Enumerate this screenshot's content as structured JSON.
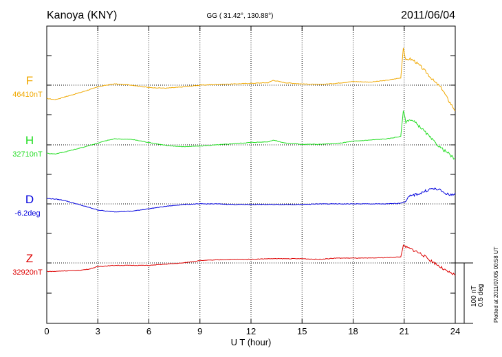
{
  "header": {
    "station": "Kanoya (KNY)",
    "coords": "GG ( 31.42°, 130.88°)",
    "date": "2011/06/04"
  },
  "scale_bar": {
    "line1": "100 nT",
    "line2": "0.5 deg"
  },
  "plotted_note": "Plotted at 2011/07/05 00:58 UT",
  "chart_data": {
    "type": "line",
    "title": "",
    "xlabel": "U T (hour)",
    "ylabel": "",
    "xlim": [
      0,
      24
    ],
    "xticks": [
      0,
      3,
      6,
      9,
      12,
      15,
      18,
      21,
      24
    ],
    "xtick_labels": [
      "0",
      "3",
      "6",
      "9",
      "12",
      "15",
      "18",
      "21",
      "24"
    ],
    "vertical_grid_hours": [
      3,
      6,
      9,
      12,
      15,
      18,
      21
    ],
    "grid": true,
    "scale_nT_per_bar": 100,
    "scale_deg_per_bar": 0.5,
    "series": [
      {
        "name": "F",
        "baseline_label": "46410nT",
        "color": "#f0a800",
        "hours": [
          0,
          0.5,
          1,
          2,
          3,
          3.5,
          4,
          5,
          6,
          7,
          8,
          9,
          10,
          11,
          12,
          13,
          13.3,
          14,
          15,
          16,
          17,
          18,
          19,
          20,
          20.8,
          20.95,
          21.1,
          21.3,
          21.6,
          22,
          22.4,
          22.8,
          23.2,
          23.6,
          24
        ],
        "values": [
          -22,
          -24,
          -20,
          -12,
          -3,
          0,
          2,
          0,
          -4,
          -5,
          -3,
          0,
          1,
          2,
          3,
          4,
          8,
          4,
          2,
          1,
          3,
          6,
          5,
          8,
          12,
          62,
          40,
          44,
          40,
          30,
          18,
          5,
          -5,
          -25,
          -42
        ]
      },
      {
        "name": "H",
        "baseline_label": "32710nT",
        "color": "#22dd22",
        "hours": [
          0,
          0.5,
          1,
          2,
          3,
          3.5,
          4,
          5,
          6,
          7,
          8,
          9,
          10,
          11,
          12,
          13,
          13.3,
          14,
          15,
          16,
          17,
          18,
          19,
          20,
          20.8,
          20.95,
          21.1,
          21.3,
          21.6,
          22,
          22.4,
          22.8,
          23.2,
          23.6,
          24
        ],
        "values": [
          -14,
          -15,
          -12,
          -5,
          3,
          7,
          10,
          9,
          4,
          -1,
          -3,
          -2,
          0,
          2,
          4,
          5,
          8,
          3,
          1,
          1,
          2,
          6,
          8,
          10,
          14,
          57,
          38,
          42,
          38,
          28,
          16,
          4,
          -6,
          -14,
          -25
        ]
      },
      {
        "name": "D",
        "baseline_label": "-6.2deg",
        "color": "#0000dd",
        "hours": [
          0,
          0.5,
          1,
          1.5,
          2,
          2.5,
          3,
          3.5,
          4,
          5,
          6,
          7,
          8,
          9,
          10,
          11,
          12,
          13,
          14,
          15,
          16,
          17,
          18,
          19,
          20,
          20.7,
          21,
          21.3,
          21.6,
          22,
          22.3,
          22.6,
          23,
          23.4,
          23.7,
          24
        ],
        "values": [
          9,
          8,
          6,
          2,
          -2,
          -6,
          -10,
          -12,
          -13,
          -12,
          -8,
          -4,
          -1,
          0,
          0,
          -1,
          -1,
          -1,
          -1,
          -1,
          0,
          0,
          0,
          0,
          0,
          1,
          3,
          12,
          15,
          18,
          22,
          25,
          24,
          18,
          14,
          18
        ]
      },
      {
        "name": "Z",
        "baseline_label": "32920nT",
        "color": "#dd0000",
        "hours": [
          0,
          0.5,
          1,
          1.5,
          2,
          2.5,
          3,
          4,
          5,
          6,
          7,
          8,
          9,
          10,
          11,
          12,
          13,
          14,
          15,
          16,
          17,
          18,
          19,
          20,
          20.8,
          20.95,
          21.2,
          21.5,
          22,
          22.5,
          23,
          23.5,
          24
        ],
        "values": [
          -14,
          -14,
          -13,
          -13,
          -12,
          -10,
          -6,
          -4,
          -4,
          -4,
          -2,
          0,
          4,
          5,
          6,
          6,
          7,
          7,
          7,
          6,
          8,
          8,
          8,
          9,
          10,
          29,
          25,
          22,
          15,
          5,
          -4,
          -14,
          -20
        ]
      }
    ]
  }
}
